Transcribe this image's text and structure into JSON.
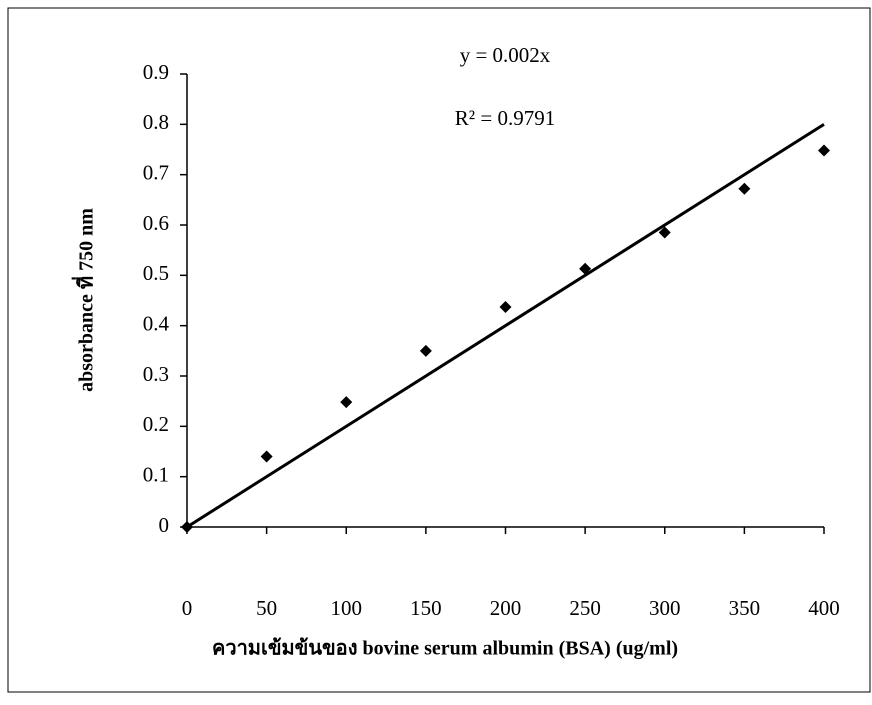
{
  "chart_data": {
    "type": "scatter",
    "x_label": "ความเข้มข้นของ bovine serum albumin (BSA)  (ug/ml)",
    "y_label": "absorbance ที่ 750 nm",
    "annotations": [
      "y = 0.002x",
      "R² = 0.9791"
    ],
    "x": [
      0,
      50,
      100,
      150,
      200,
      250,
      300,
      350,
      400
    ],
    "values": [
      0,
      0.14,
      0.248,
      0.35,
      0.437,
      0.513,
      0.585,
      0.672,
      0.748
    ],
    "color": "#000000",
    "trendline": {
      "x": [
        0,
        400
      ],
      "values": [
        0,
        0.8
      ]
    },
    "xlim": [
      0,
      400
    ],
    "xticks": [
      0,
      50,
      100,
      150,
      200,
      250,
      300,
      350,
      400
    ],
    "ylim": [
      0,
      0.9
    ],
    "yticks": [
      0,
      0.1,
      0.2,
      0.3,
      0.4,
      0.5,
      0.6,
      0.7,
      0.8,
      0.9
    ]
  }
}
